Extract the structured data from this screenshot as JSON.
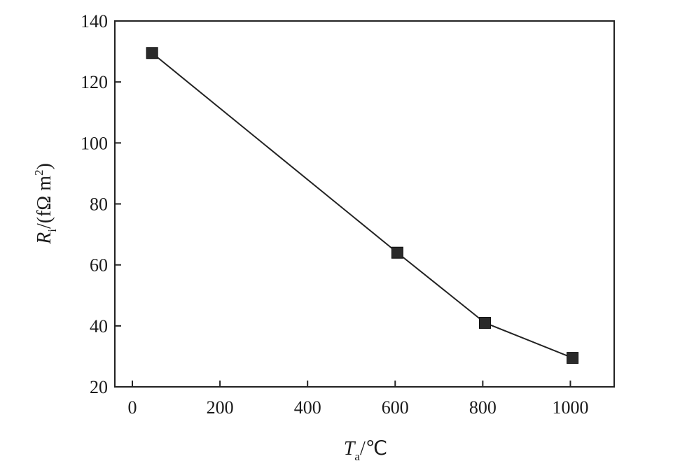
{
  "chart_data": {
    "type": "line",
    "xlabel": {
      "symbol": "T",
      "subscript": "a",
      "unit": "/℃"
    },
    "ylabel": {
      "symbol": "R",
      "subscript": "i",
      "unit": "/(fΩ m",
      "sup": "2",
      "close": ")"
    },
    "xlim": [
      -40,
      1100
    ],
    "ylim": [
      20,
      140
    ],
    "xticks": [
      0,
      200,
      400,
      600,
      800,
      1000
    ],
    "yticks": [
      20,
      40,
      60,
      80,
      100,
      120,
      140
    ],
    "grid": false,
    "series": [
      {
        "x": [
          45,
          605,
          805,
          1005
        ],
        "y": [
          129.5,
          64,
          41,
          29.5
        ],
        "marker": "square",
        "color": "#2a2a2a"
      }
    ]
  }
}
